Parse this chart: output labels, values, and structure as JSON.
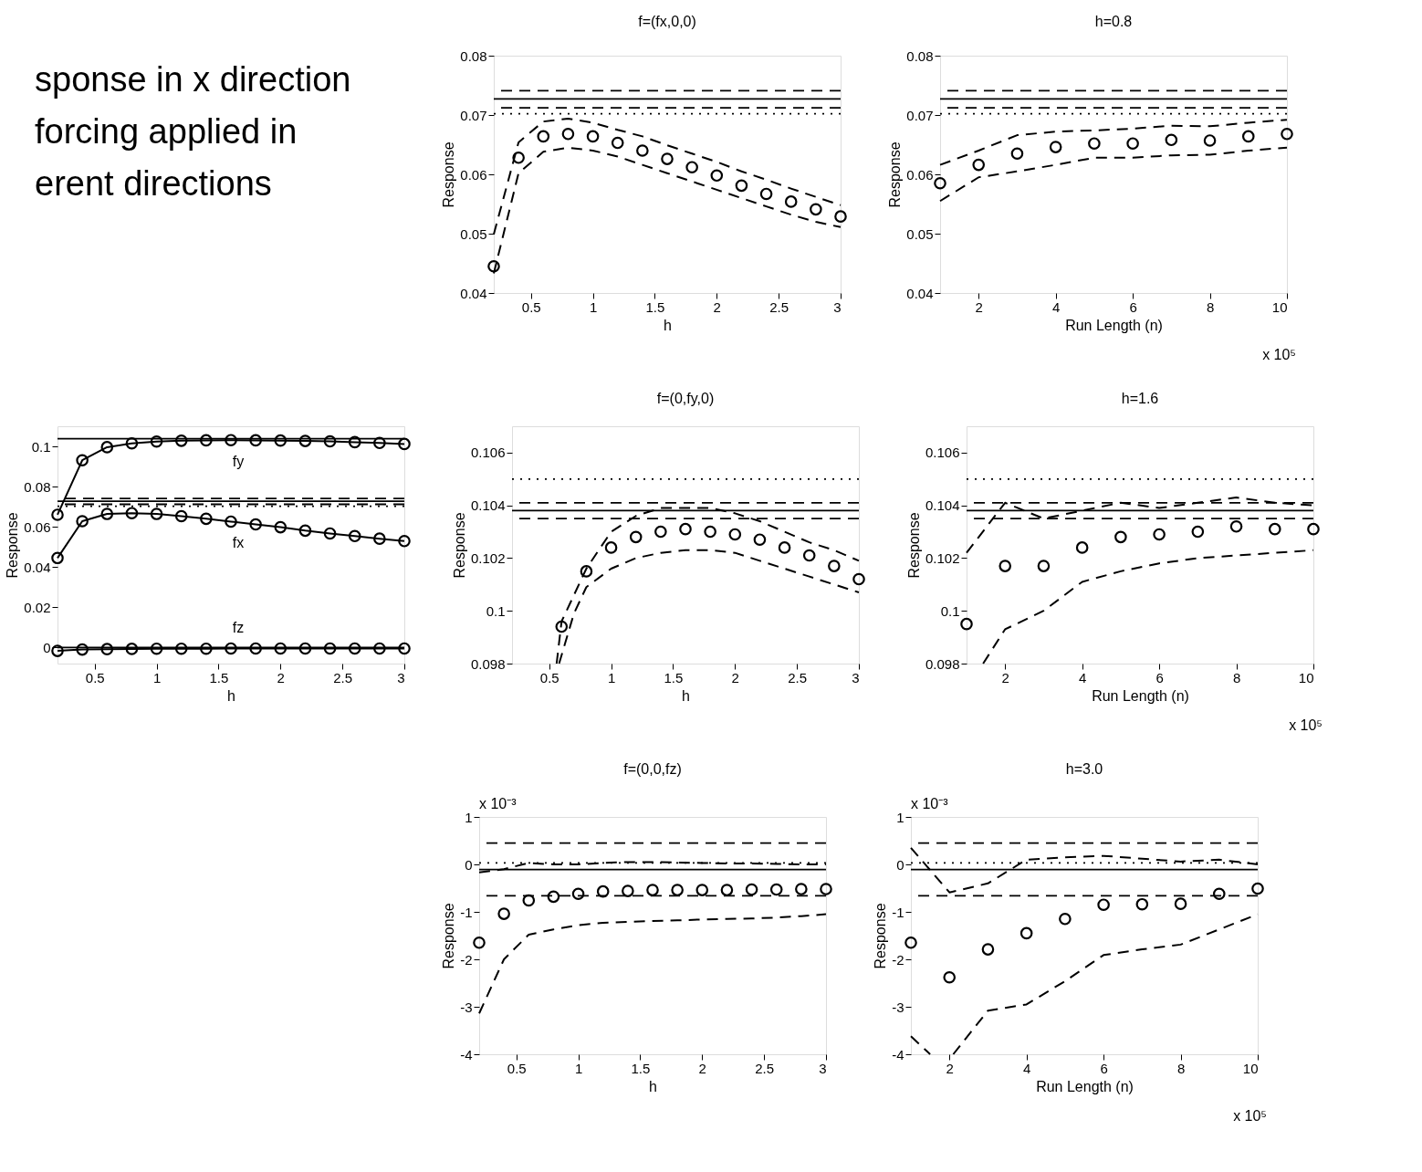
{
  "chart_data": [
    {
      "type": "other",
      "annotations": [
        "sponse in x direction",
        "forcing applied in",
        "erent directions"
      ]
    },
    {
      "type": "scatter",
      "title": "f=(fx,0,0)",
      "xlabel": "h",
      "ylabel": "Response",
      "xlim": [
        0.2,
        3
      ],
      "xticks": [
        0.5,
        1,
        1.5,
        2,
        2.5,
        3
      ],
      "ylim": [
        0.04,
        0.08
      ],
      "yticks": [
        0.04,
        0.05,
        0.06,
        0.07,
        0.08
      ],
      "grid": false,
      "x": [
        0.2,
        0.4,
        0.6,
        0.8,
        1.0,
        1.2,
        1.4,
        1.6,
        1.8,
        2.0,
        2.2,
        2.4,
        2.6,
        2.8,
        3.0
      ],
      "series": [
        {
          "color": "#000000",
          "marker": "circle",
          "values": [
            0.0445,
            0.0628,
            0.0664,
            0.0668,
            0.0664,
            0.0653,
            0.064,
            0.0626,
            0.0612,
            0.0598,
            0.0581,
            0.0567,
            0.0554,
            0.0541,
            0.0529
          ]
        },
        {
          "type": "line",
          "line_style": "dashed",
          "color": "#000000",
          "values": [
            0.0499,
            0.0654,
            0.0689,
            0.0694,
            0.0687,
            0.0675,
            0.0664,
            0.0649,
            0.0635,
            0.0621,
            0.0605,
            0.0591,
            0.0576,
            0.0562,
            0.0548
          ]
        },
        {
          "type": "line",
          "line_style": "dashed",
          "color": "#000000",
          "values": [
            0.0433,
            0.0602,
            0.0638,
            0.0645,
            0.064,
            0.063,
            0.0616,
            0.0602,
            0.0588,
            0.0574,
            0.056,
            0.0546,
            0.0532,
            0.052,
            0.0511
          ]
        }
      ],
      "ref_lines": [
        {
          "axis": "y",
          "value": 0.0741,
          "line_style": "dashed",
          "color": "#000000"
        },
        {
          "axis": "y",
          "value": 0.0727,
          "line_style": "solid",
          "color": "#000000"
        },
        {
          "axis": "y",
          "value": 0.0712,
          "line_style": "dashed",
          "color": "#000000"
        },
        {
          "axis": "y",
          "value": 0.0702,
          "line_style": "dotted",
          "color": "#000000"
        }
      ]
    },
    {
      "type": "scatter",
      "title": "h=0.8",
      "xlabel": "Run Length (n)",
      "ylabel": "Response",
      "xlim": [
        1,
        10
      ],
      "xticks": [
        2,
        4,
        6,
        8,
        10
      ],
      "ylim": [
        0.04,
        0.08
      ],
      "yticks": [
        0.04,
        0.05,
        0.06,
        0.07,
        0.08
      ],
      "grid": false,
      "annotations": [
        "x 10⁵"
      ],
      "x": [
        1,
        2,
        3,
        4,
        5,
        6,
        7,
        8,
        9,
        10
      ],
      "series": [
        {
          "color": "#000000",
          "marker": "circle",
          "values": [
            0.0585,
            0.0616,
            0.0635,
            0.0646,
            0.0652,
            0.0652,
            0.0658,
            0.0657,
            0.0664,
            0.0668
          ]
        },
        {
          "type": "line",
          "line_style": "dashed",
          "color": "#000000",
          "values": [
            0.0616,
            0.064,
            0.0666,
            0.0672,
            0.0674,
            0.0677,
            0.0682,
            0.0681,
            0.0687,
            0.0692
          ]
        },
        {
          "type": "line",
          "line_style": "dashed",
          "color": "#000000",
          "values": [
            0.0555,
            0.0595,
            0.0605,
            0.0616,
            0.0628,
            0.0628,
            0.0632,
            0.0633,
            0.064,
            0.0645
          ]
        }
      ],
      "ref_lines": [
        {
          "axis": "y",
          "value": 0.0741,
          "line_style": "dashed",
          "color": "#000000"
        },
        {
          "axis": "y",
          "value": 0.0727,
          "line_style": "solid",
          "color": "#000000"
        },
        {
          "axis": "y",
          "value": 0.0712,
          "line_style": "dashed",
          "color": "#000000"
        },
        {
          "axis": "y",
          "value": 0.0702,
          "line_style": "dotted",
          "color": "#000000"
        }
      ]
    },
    {
      "type": "line",
      "xlabel": "h",
      "ylabel": "Response",
      "xlim": [
        0.2,
        3
      ],
      "xticks": [
        0.5,
        1,
        1.5,
        2,
        2.5,
        3
      ],
      "ylim": [
        -0.008,
        0.11
      ],
      "yticks": [
        0,
        0.02,
        0.04,
        0.06,
        0.08,
        0.1
      ],
      "grid": false,
      "x": [
        0.2,
        0.4,
        0.6,
        0.8,
        1.0,
        1.2,
        1.4,
        1.6,
        1.8,
        2.0,
        2.2,
        2.4,
        2.6,
        2.8,
        3.0
      ],
      "series": [
        {
          "name": "fy",
          "color": "#000000",
          "marker": "circle",
          "line_style": "solid",
          "values": [
            0.066,
            0.0931,
            0.0996,
            0.1015,
            0.1024,
            0.1028,
            0.103,
            0.1031,
            0.103,
            0.1029,
            0.1027,
            0.1025,
            0.1021,
            0.1017,
            0.1012
          ]
        },
        {
          "name": "fx",
          "color": "#000000",
          "marker": "circle",
          "line_style": "solid",
          "values": [
            0.0445,
            0.0628,
            0.0664,
            0.0668,
            0.0664,
            0.0653,
            0.064,
            0.0626,
            0.0612,
            0.0598,
            0.0581,
            0.0567,
            0.0554,
            0.0541,
            0.0529
          ]
        },
        {
          "name": "fz",
          "color": "#000000",
          "marker": "circle",
          "line_style": "solid",
          "values": [
            -0.0017,
            -0.001,
            -0.0008,
            -0.0007,
            -0.0006,
            -0.0006,
            -0.0006,
            -0.0005,
            -0.0005,
            -0.0005,
            -0.0005,
            -0.0005,
            -0.0005,
            -0.0005,
            -0.0005
          ]
        }
      ],
      "ref_lines": [
        {
          "axis": "y",
          "value": 0.1038,
          "line_style": "solid",
          "color": "#000000"
        },
        {
          "axis": "y",
          "value": 0.0741,
          "line_style": "dashed",
          "color": "#000000"
        },
        {
          "axis": "y",
          "value": 0.0727,
          "line_style": "solid",
          "color": "#000000"
        },
        {
          "axis": "y",
          "value": 0.0712,
          "line_style": "dashed",
          "color": "#000000"
        },
        {
          "axis": "y",
          "value": 0.0702,
          "line_style": "dotted",
          "color": "#000000"
        },
        {
          "axis": "y",
          "value": 0,
          "line_style": "solid",
          "color": "#000000"
        }
      ]
    },
    {
      "type": "scatter",
      "title": "f=(0,fy,0)",
      "xlabel": "h",
      "ylabel": "Response",
      "xlim": [
        0.2,
        3
      ],
      "xticks": [
        0.5,
        1,
        1.5,
        2,
        2.5,
        3
      ],
      "ylim": [
        0.098,
        0.107
      ],
      "yticks": [
        0.098,
        0.1,
        0.102,
        0.104,
        0.106
      ],
      "grid": false,
      "series": [
        {
          "color": "#000000",
          "marker": "circle",
          "x": [
            0.6,
            0.8,
            1.0,
            1.2,
            1.4,
            1.6,
            1.8,
            2.0,
            2.2,
            2.4,
            2.6,
            2.8,
            3.0
          ],
          "values": [
            0.0994,
            0.1015,
            0.1024,
            0.1028,
            0.103,
            0.1031,
            0.103,
            0.1029,
            0.1027,
            0.1024,
            0.1021,
            0.1017,
            0.1012
          ]
        },
        {
          "type": "line",
          "line_style": "dashed",
          "color": "#000000",
          "x": [
            0.56,
            0.6,
            0.8,
            1.0,
            1.2,
            1.4,
            1.6,
            1.8,
            2.0,
            2.2,
            2.4,
            2.6,
            2.8,
            3.0
          ],
          "values": [
            0.098,
            0.0996,
            0.1016,
            0.103,
            0.1036,
            0.1039,
            0.1039,
            0.1039,
            0.1037,
            0.1034,
            0.103,
            0.1026,
            0.1023,
            0.1019
          ]
        },
        {
          "type": "line",
          "line_style": "dashed",
          "color": "#000000",
          "x": [
            0.58,
            0.7,
            0.8,
            1.0,
            1.2,
            1.4,
            1.6,
            1.8,
            2.0,
            2.2,
            2.4,
            2.6,
            2.8,
            3.0
          ],
          "values": [
            0.098,
            0.0999,
            0.1009,
            0.1016,
            0.102,
            0.1022,
            0.1023,
            0.1023,
            0.1022,
            0.1019,
            0.1016,
            0.1013,
            0.101,
            0.1007
          ]
        }
      ],
      "ref_lines": [
        {
          "axis": "y",
          "value": 0.105,
          "line_style": "dotted",
          "color": "#000000"
        },
        {
          "axis": "y",
          "value": 0.1041,
          "line_style": "dashed",
          "color": "#000000"
        },
        {
          "axis": "y",
          "value": 0.1038,
          "line_style": "solid",
          "color": "#000000"
        },
        {
          "axis": "y",
          "value": 0.1035,
          "line_style": "dashed",
          "color": "#000000"
        }
      ]
    },
    {
      "type": "scatter",
      "title": "h=1.6",
      "xlabel": "Run Length (n)",
      "ylabel": "Response",
      "xlim": [
        1,
        10
      ],
      "xticks": [
        2,
        4,
        6,
        8,
        10
      ],
      "ylim": [
        0.098,
        0.107
      ],
      "yticks": [
        0.098,
        0.1,
        0.102,
        0.104,
        0.106
      ],
      "grid": false,
      "annotations": [
        "x 10⁵"
      ],
      "x": [
        1,
        2,
        3,
        4,
        5,
        6,
        7,
        8,
        9,
        10
      ],
      "series": [
        {
          "color": "#000000",
          "marker": "circle",
          "values": [
            0.0995,
            0.1017,
            0.1017,
            0.1024,
            0.1028,
            0.1029,
            0.103,
            0.1032,
            0.1031,
            0.1031
          ]
        },
        {
          "type": "line",
          "line_style": "dashed",
          "color": "#000000",
          "values": [
            0.1022,
            0.1041,
            0.1035,
            0.1038,
            0.1041,
            0.1039,
            0.1041,
            0.1043,
            0.1041,
            0.104
          ]
        },
        {
          "type": "line",
          "line_style": "dashed",
          "color": "#000000",
          "x": [
            1.43,
            2,
            3,
            4,
            5,
            6,
            7,
            8,
            9,
            10
          ],
          "values": [
            0.098,
            0.0993,
            0.1,
            0.1011,
            0.1015,
            0.1018,
            0.102,
            0.1021,
            0.1022,
            0.1023
          ]
        }
      ],
      "ref_lines": [
        {
          "axis": "y",
          "value": 0.105,
          "line_style": "dotted",
          "color": "#000000"
        },
        {
          "axis": "y",
          "value": 0.1041,
          "line_style": "dashed",
          "color": "#000000"
        },
        {
          "axis": "y",
          "value": 0.1038,
          "line_style": "solid",
          "color": "#000000"
        },
        {
          "axis": "y",
          "value": 0.1035,
          "line_style": "dashed",
          "color": "#000000"
        }
      ]
    },
    {
      "type": "scatter",
      "title": "f=(0,0,fz)",
      "xlabel": "h",
      "ylabel": "Response",
      "xlim": [
        0.2,
        3
      ],
      "xticks": [
        0.5,
        1,
        1.5,
        2,
        2.5,
        3
      ],
      "ylim": [
        -4,
        1
      ],
      "yticks": [
        -4,
        -3,
        -2,
        -1,
        0,
        1
      ],
      "grid": false,
      "annotations": [
        "x 10⁻³"
      ],
      "x": [
        0.2,
        0.4,
        0.6,
        0.8,
        1.0,
        1.2,
        1.4,
        1.6,
        1.8,
        2.0,
        2.2,
        2.4,
        2.6,
        2.8,
        3.0
      ],
      "series": [
        {
          "color": "#000000",
          "marker": "circle",
          "values": [
            -1.65,
            -1.04,
            -0.76,
            -0.68,
            -0.62,
            -0.57,
            -0.56,
            -0.54,
            -0.54,
            -0.54,
            -0.54,
            -0.53,
            -0.53,
            -0.52,
            -0.52
          ]
        },
        {
          "type": "line",
          "line_style": "dashed",
          "color": "#000000",
          "values": [
            -0.17,
            -0.1,
            0.03,
            0.0,
            0.0,
            0.03,
            0.05,
            0.05,
            0.04,
            0.03,
            0.02,
            0.02,
            0.01,
            0.0,
            0.0
          ]
        },
        {
          "type": "line",
          "line_style": "dashed",
          "color": "#000000",
          "values": [
            -3.14,
            -2.0,
            -1.48,
            -1.37,
            -1.28,
            -1.23,
            -1.21,
            -1.19,
            -1.18,
            -1.16,
            -1.15,
            -1.14,
            -1.12,
            -1.09,
            -1.05
          ]
        }
      ],
      "ref_lines": [
        {
          "axis": "y",
          "value": 0.45,
          "line_style": "dashed",
          "color": "#000000"
        },
        {
          "axis": "y",
          "value": 0.03,
          "line_style": "dotted",
          "color": "#000000"
        },
        {
          "axis": "y",
          "value": -0.11,
          "line_style": "solid",
          "color": "#000000"
        },
        {
          "axis": "y",
          "value": -0.66,
          "line_style": "dashed",
          "color": "#000000"
        }
      ]
    },
    {
      "type": "scatter",
      "title": "h=3.0",
      "xlabel": "Run Length (n)",
      "ylabel": "Response",
      "xlim": [
        1,
        10
      ],
      "xticks": [
        2,
        4,
        6,
        8,
        10
      ],
      "ylim": [
        -4,
        1
      ],
      "yticks": [
        -4,
        -3,
        -2,
        -1,
        0,
        1
      ],
      "grid": false,
      "annotations": [
        "x 10⁻³",
        "x 10⁵"
      ],
      "x": [
        1,
        2,
        3,
        4,
        5,
        6,
        7,
        8,
        9,
        10
      ],
      "series": [
        {
          "color": "#000000",
          "marker": "circle",
          "values": [
            -1.65,
            -2.38,
            -1.79,
            -1.45,
            -1.15,
            -0.85,
            -0.84,
            -0.83,
            -0.62,
            -0.51
          ]
        },
        {
          "type": "line",
          "line_style": "dashed",
          "color": "#000000",
          "values": [
            0.35,
            -0.59,
            -0.4,
            0.1,
            0.15,
            0.18,
            0.12,
            0.06,
            0.1,
            0.0
          ]
        },
        {
          "type": "line",
          "line_style": "dashed",
          "color": "#000000",
          "x": [
            1,
            1.5,
            1.8,
            2.1,
            3,
            4,
            5,
            6,
            7,
            8,
            9,
            10
          ],
          "values": [
            -3.62,
            -4.0,
            null,
            -4.0,
            -3.08,
            -2.95,
            -2.46,
            -1.91,
            -1.79,
            -1.69,
            -1.37,
            -1.05
          ]
        }
      ],
      "ref_lines": [
        {
          "axis": "y",
          "value": 0.45,
          "line_style": "dashed",
          "color": "#000000"
        },
        {
          "axis": "y",
          "value": 0.03,
          "line_style": "dotted",
          "color": "#000000"
        },
        {
          "axis": "y",
          "value": -0.11,
          "line_style": "solid",
          "color": "#000000"
        },
        {
          "axis": "y",
          "value": -0.66,
          "line_style": "dashed",
          "color": "#000000"
        }
      ]
    }
  ]
}
